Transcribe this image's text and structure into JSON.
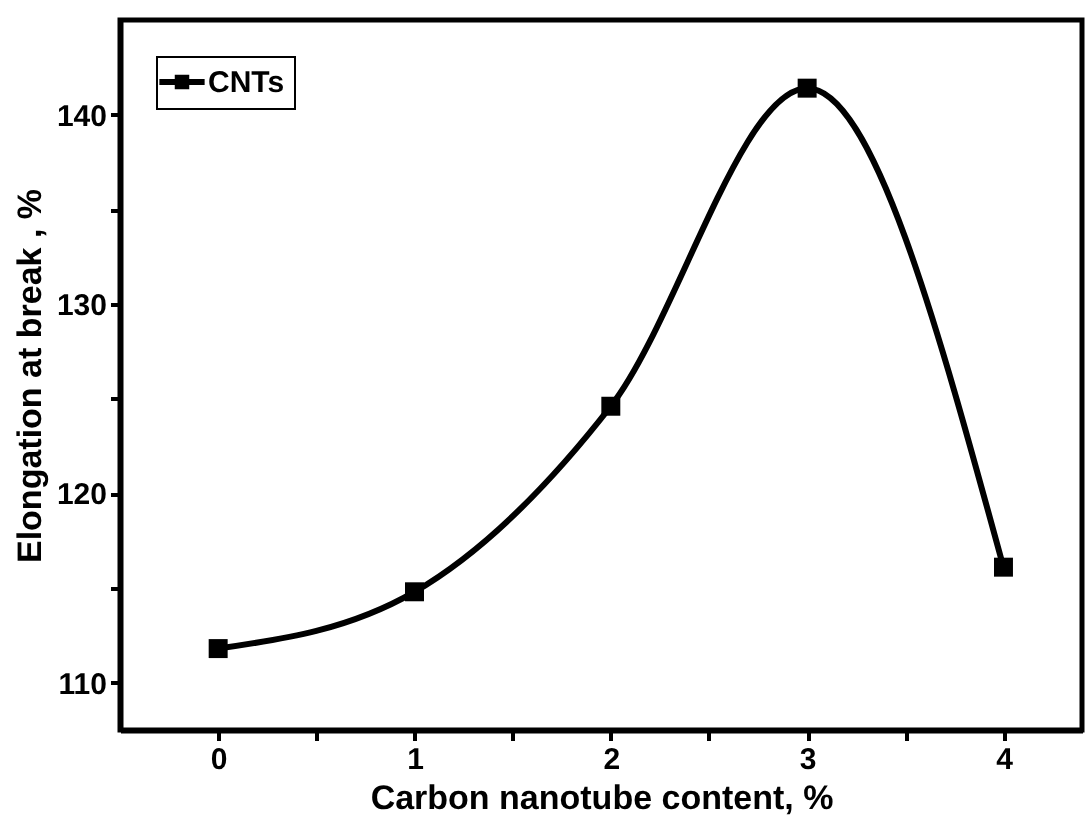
{
  "chart_data": {
    "type": "line",
    "xlabel": "Carbon nanotube content, %",
    "ylabel": "Elongation at break , %",
    "x": [
      0,
      1,
      2,
      3,
      4
    ],
    "series": [
      {
        "name": "CNTs",
        "color": "#000000",
        "values": [
          111.8,
          114.8,
          124.6,
          141.4,
          116.1
        ]
      }
    ],
    "xlim": [
      -0.5,
      4.4
    ],
    "ylim": [
      107.5,
      145
    ],
    "xticks": [
      0,
      {
        "value": 0.5,
        "label": null
      },
      1,
      {
        "value": 1.5,
        "label": null
      },
      2,
      {
        "value": 2.5,
        "label": null
      },
      3,
      {
        "value": 3.5,
        "label": null
      },
      4
    ],
    "yticks": [
      110,
      {
        "value": 115,
        "label": null
      },
      120,
      {
        "value": 125,
        "label": null
      },
      130,
      {
        "value": 135,
        "label": null
      },
      140
    ],
    "marker": "square",
    "line_style": "solid",
    "grid": false,
    "legend": "top left"
  }
}
